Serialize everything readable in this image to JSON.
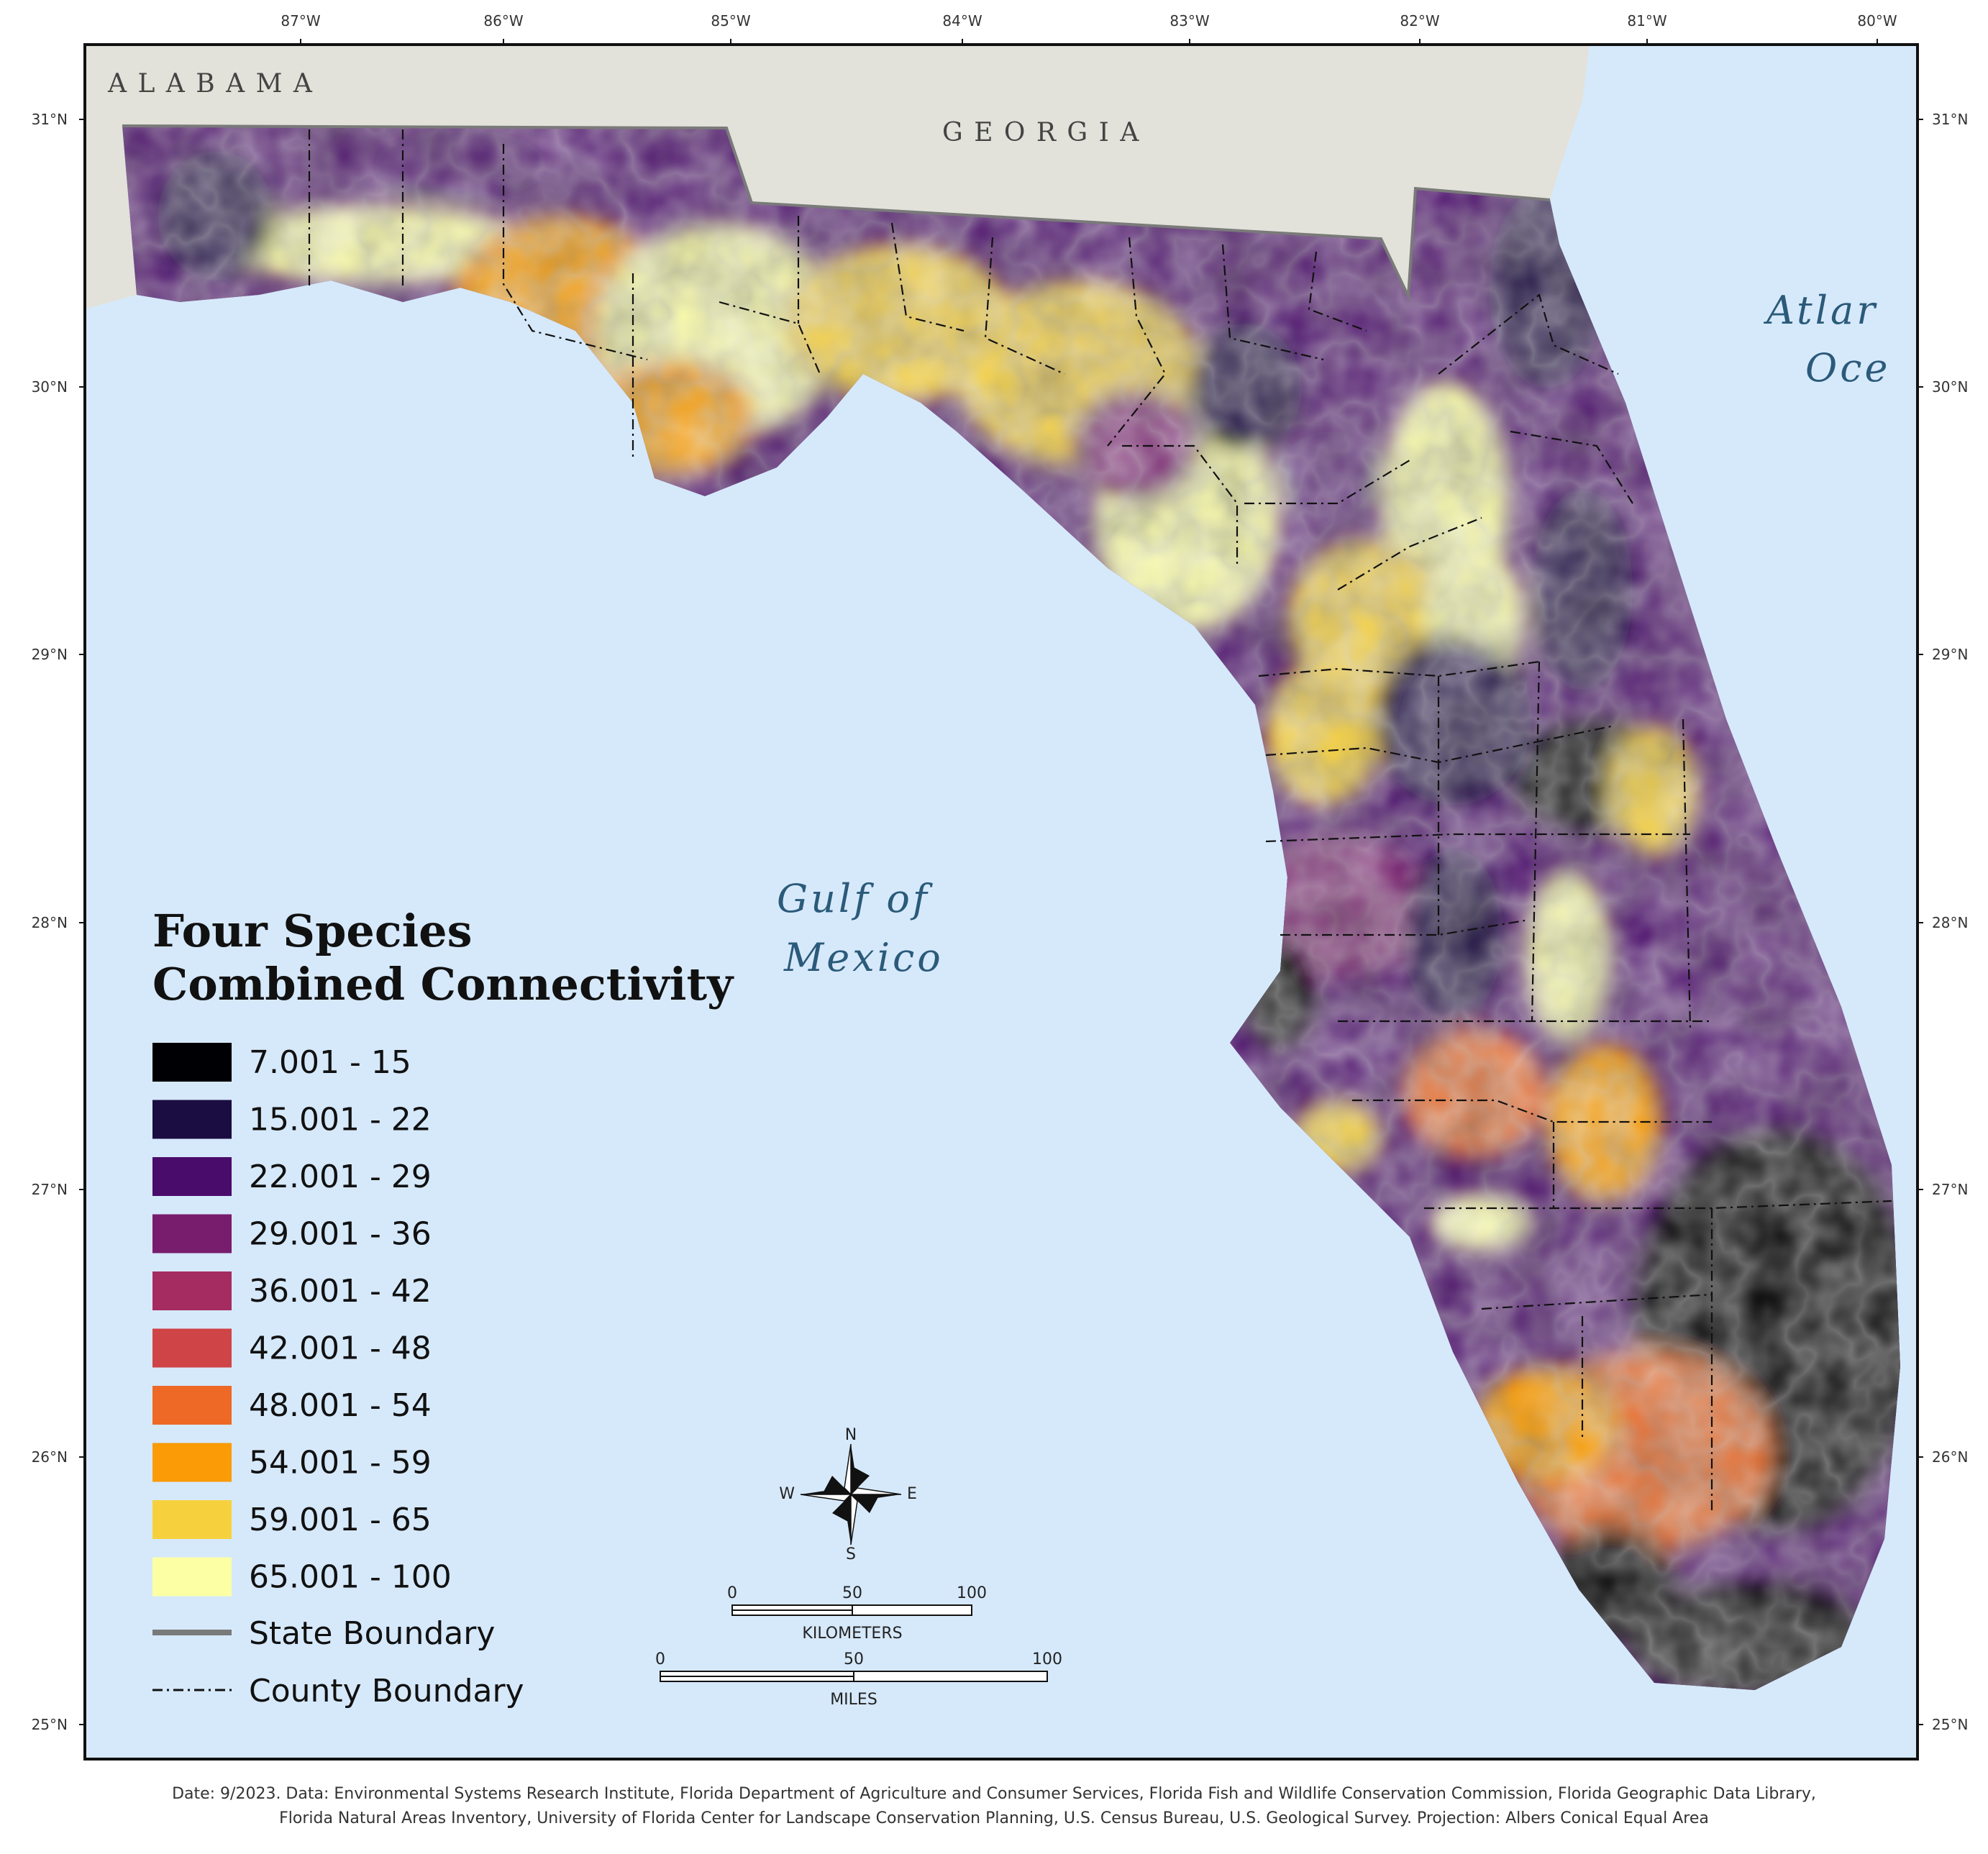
{
  "longitude_ticks": [
    "87°W",
    "86°W",
    "85°W",
    "84°W",
    "83°W",
    "82°W",
    "81°W",
    "80°W"
  ],
  "latitude_ticks": [
    "31°N",
    "30°N",
    "29°N",
    "28°N",
    "27°N",
    "26°N",
    "25°N"
  ],
  "state_labels": {
    "alabama": "A L A B A M A",
    "georgia": "G E O R G I A"
  },
  "water_labels": {
    "gulf_line1": "Gulf of",
    "gulf_line2": "Mexico",
    "atlantic_line1": "Atlar",
    "atlantic_line2": "Oce"
  },
  "legend": {
    "title_line1": "Four Species",
    "title_line2": "Combined Connectivity",
    "classes": [
      {
        "label": "7.001 - 15",
        "color": "#000004"
      },
      {
        "label": "15.001 - 22",
        "color": "#1b0c41"
      },
      {
        "label": "22.001 - 29",
        "color": "#4a0c6b"
      },
      {
        "label": "29.001 - 36",
        "color": "#781c6d"
      },
      {
        "label": "36.001 - 42",
        "color": "#a52c60"
      },
      {
        "label": "42.001 - 48",
        "color": "#cf4446"
      },
      {
        "label": "48.001 - 54",
        "color": "#ed6925"
      },
      {
        "label": "54.001 - 59",
        "color": "#fb9b06"
      },
      {
        "label": "59.001 - 65",
        "color": "#f7d13d"
      },
      {
        "label": "65.001 - 100",
        "color": "#fcffa4"
      }
    ],
    "state_boundary": "State Boundary",
    "county_boundary": "County Boundary"
  },
  "compass": {
    "n": "N",
    "s": "S",
    "e": "E",
    "w": "W"
  },
  "scale_km": {
    "ticks": [
      "0",
      "50",
      "100"
    ],
    "unit": "KILOMETERS"
  },
  "scale_mi": {
    "ticks": [
      "0",
      "50",
      "100"
    ],
    "unit": "MILES"
  },
  "footer": {
    "line1": "Date: 9/2023.  Data: Environmental Systems Research Institute, Florida Department of Agriculture and Consumer Services, Florida Fish and Wildlife Conservation Commission, Florida Geographic Data Library,",
    "line2": "Florida Natural Areas Inventory, University of Florida Center for Landscape Conservation Planning, U.S. Census Bureau, U.S. Geological Survey.  Projection: Albers Conical Equal Area"
  },
  "colors": {
    "water": "#d6e9fb",
    "land_outside": "#e2e2da",
    "frame": "#111111"
  }
}
